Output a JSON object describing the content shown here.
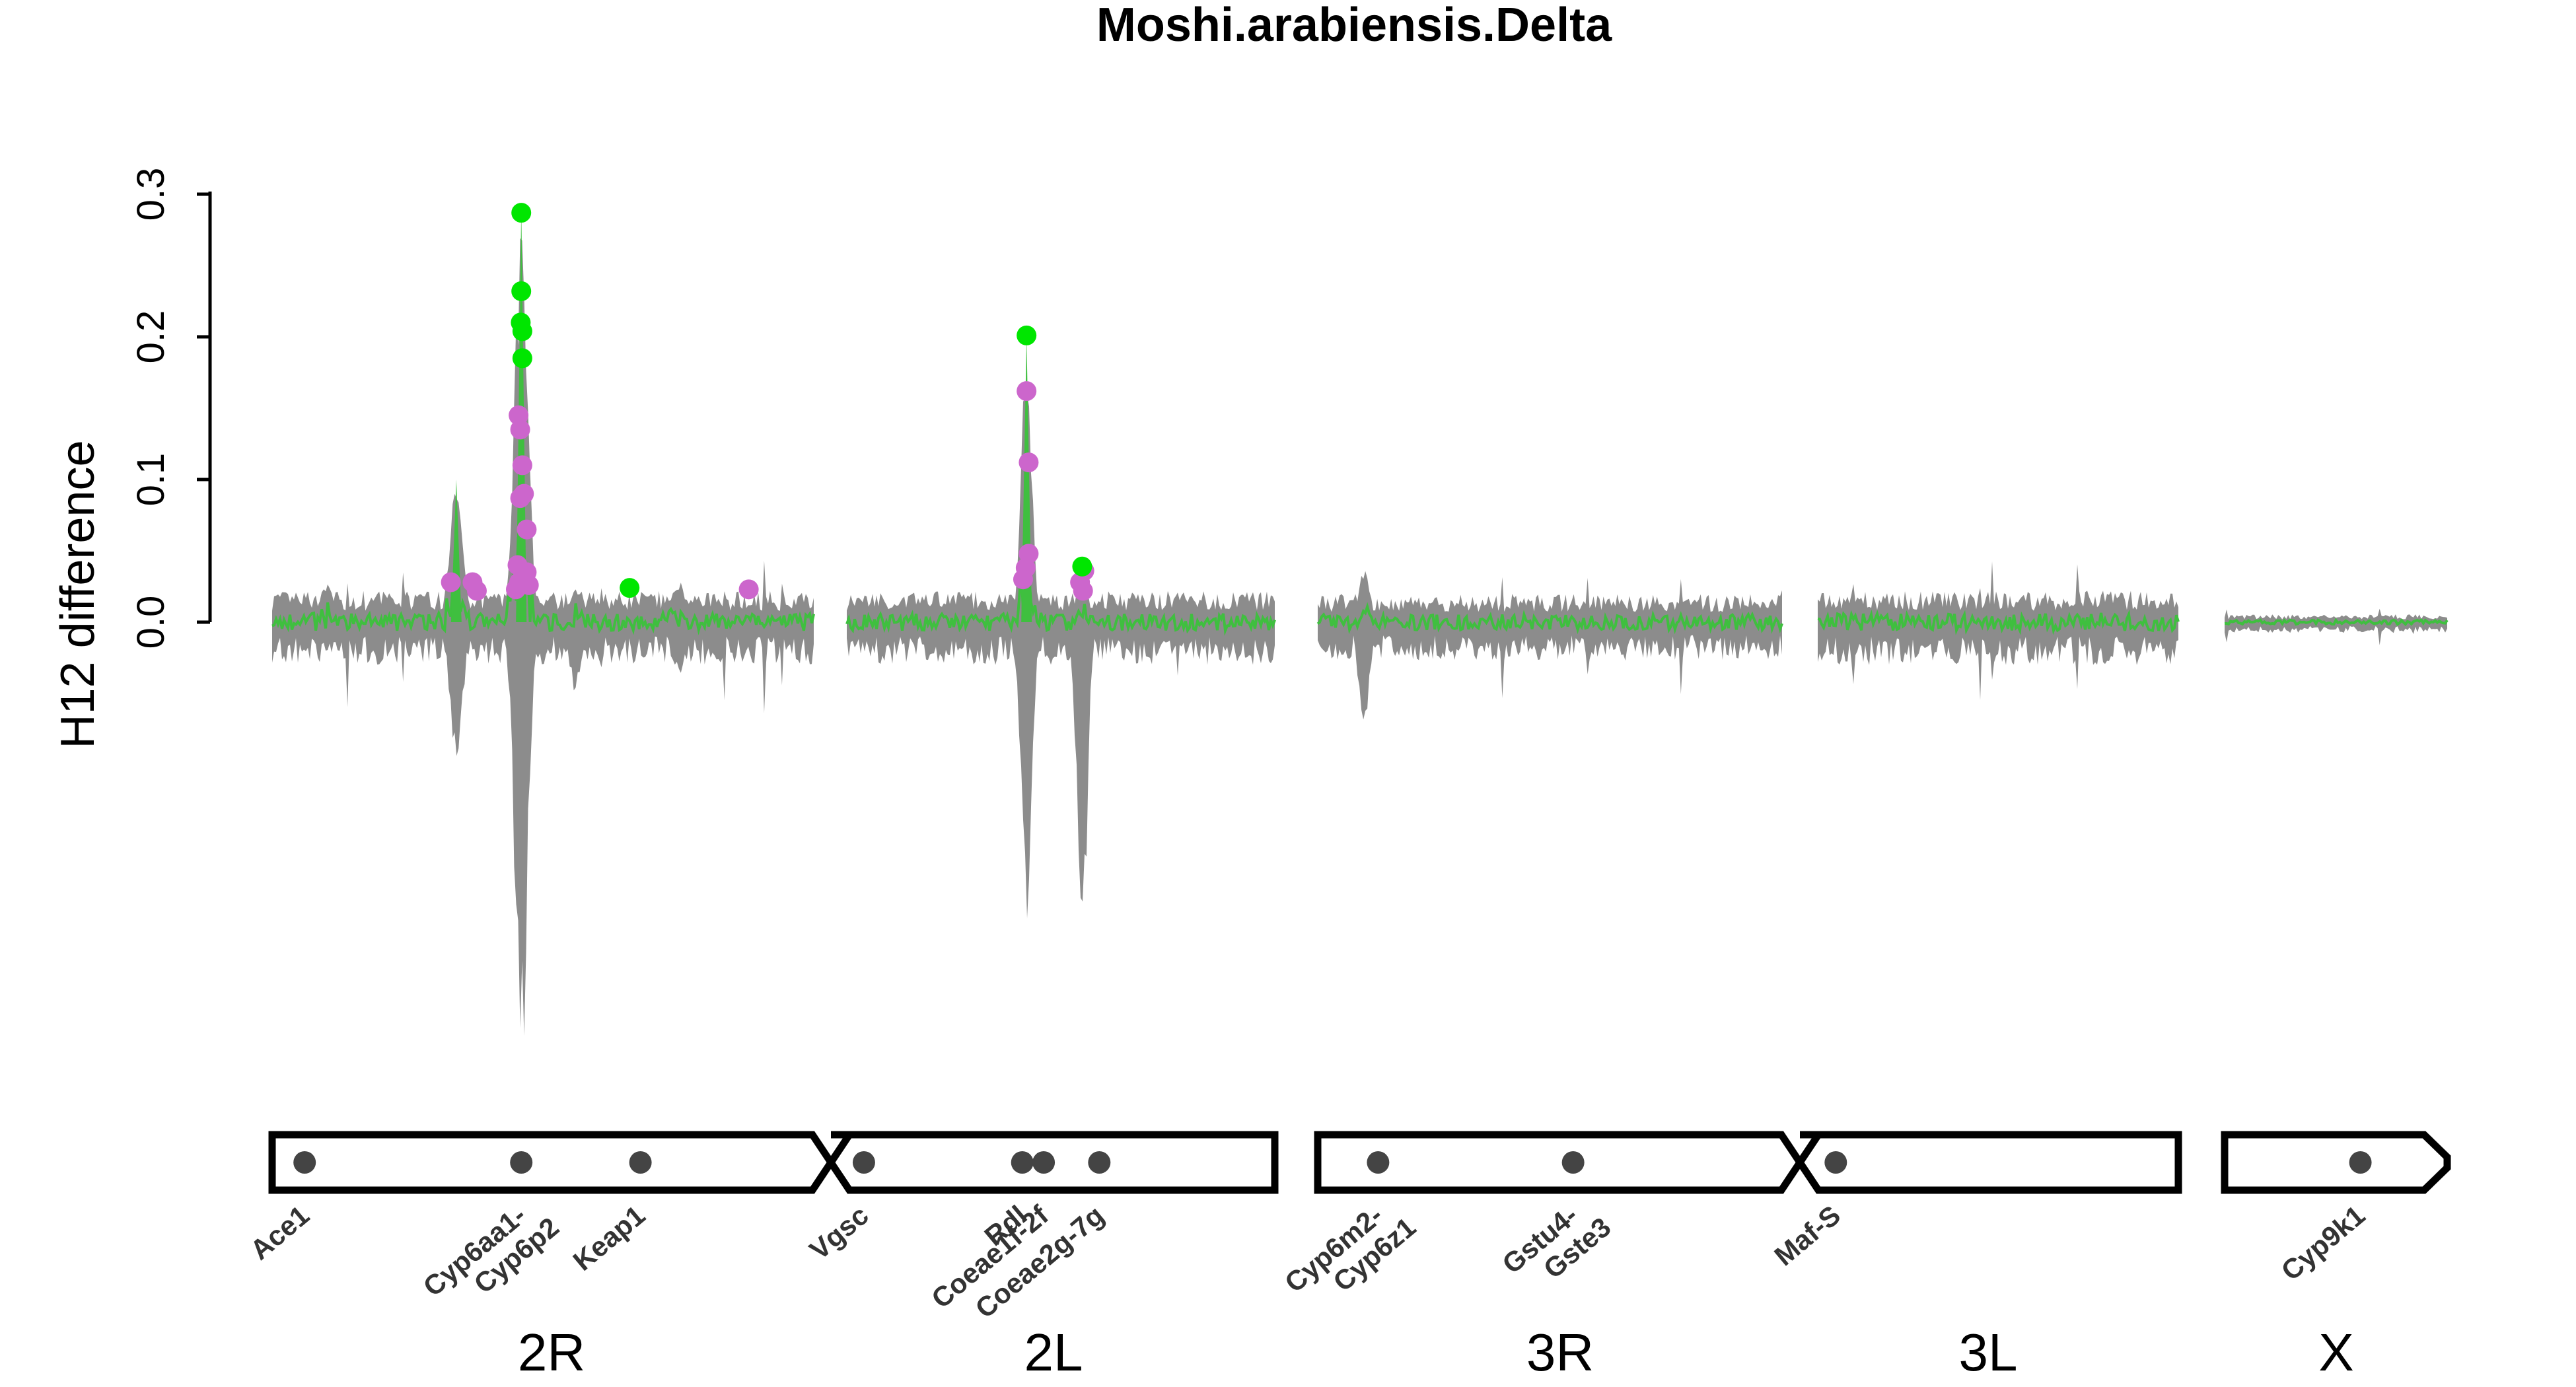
{
  "chart_data": {
    "type": "line",
    "title": "Moshi.arabiensis.Delta",
    "ylabel": "H12 difference",
    "xlabel": "",
    "ylim": [
      -0.32,
      0.35
    ],
    "yticks": [
      {
        "value": 0.0,
        "label": "0.0"
      },
      {
        "value": 0.1,
        "label": "0.1"
      },
      {
        "value": 0.2,
        "label": "0.2"
      },
      {
        "value": 0.3,
        "label": "0.3"
      }
    ],
    "colors": {
      "line": "#3fbf3f",
      "band": "#8c8c8c",
      "significant_high": "#00e600",
      "significant_mid": "#cc66cc",
      "gene_dot": "#444444",
      "outline": "#000000"
    },
    "chromosomes": [
      {
        "name": "2R",
        "start": 0,
        "end": 1
      },
      {
        "name": "2L",
        "start": 1,
        "end": 2
      },
      {
        "name": "3R",
        "start": 2,
        "end": 3
      },
      {
        "name": "3L",
        "start": 3,
        "end": 4
      },
      {
        "name": "X",
        "start": 4,
        "end": 5
      }
    ],
    "series": [
      {
        "name": "",
        "baseline": 0.0,
        "peaks": [
          {
            "x": 0.1,
            "y": 0.028,
            "lo": -0.02
          },
          {
            "x": 0.34,
            "y": 0.1,
            "lo": -0.1
          },
          {
            "x": 0.46,
            "y": 0.29,
            "lo": -0.32
          },
          {
            "x": 0.56,
            "y": 0.025,
            "lo": -0.05
          },
          {
            "x": 0.75,
            "y": 0.03,
            "lo": -0.04
          },
          {
            "x": 1.42,
            "y": 0.2,
            "lo": -0.24
          },
          {
            "x": 1.55,
            "y": 0.04,
            "lo": -0.25
          },
          {
            "x": 2.1,
            "y": 0.04,
            "lo": -0.08
          },
          {
            "x": 3.8,
            "y": 0.015,
            "lo": -0.03
          }
        ]
      }
    ],
    "points_green": [
      {
        "x": 0.46,
        "y": 0.287
      },
      {
        "x": 0.46,
        "y": 0.232
      },
      {
        "x": 0.459,
        "y": 0.21
      },
      {
        "x": 0.462,
        "y": 0.204
      },
      {
        "x": 0.462,
        "y": 0.185
      },
      {
        "x": 0.66,
        "y": 0.024
      },
      {
        "x": 1.42,
        "y": 0.201
      },
      {
        "x": 1.55,
        "y": 0.039
      }
    ],
    "points_magenta": [
      {
        "x": 0.33,
        "y": 0.028
      },
      {
        "x": 0.37,
        "y": 0.028
      },
      {
        "x": 0.378,
        "y": 0.022
      },
      {
        "x": 0.455,
        "y": 0.145
      },
      {
        "x": 0.458,
        "y": 0.135
      },
      {
        "x": 0.462,
        "y": 0.11
      },
      {
        "x": 0.465,
        "y": 0.09
      },
      {
        "x": 0.458,
        "y": 0.087
      },
      {
        "x": 0.47,
        "y": 0.065
      },
      {
        "x": 0.453,
        "y": 0.04
      },
      {
        "x": 0.47,
        "y": 0.035
      },
      {
        "x": 0.456,
        "y": 0.028
      },
      {
        "x": 0.474,
        "y": 0.026
      },
      {
        "x": 0.45,
        "y": 0.023
      },
      {
        "x": 0.88,
        "y": 0.023
      },
      {
        "x": 1.42,
        "y": 0.162
      },
      {
        "x": 1.425,
        "y": 0.112
      },
      {
        "x": 1.425,
        "y": 0.048
      },
      {
        "x": 1.418,
        "y": 0.038
      },
      {
        "x": 1.412,
        "y": 0.03
      },
      {
        "x": 1.555,
        "y": 0.036
      },
      {
        "x": 1.545,
        "y": 0.028
      },
      {
        "x": 1.552,
        "y": 0.022
      }
    ],
    "genes": [
      {
        "label": "Ace1",
        "x": 0.06
      },
      {
        "label": "Cyp6aa1-",
        "label2": "Cyp6p2",
        "x": 0.46
      },
      {
        "label": "Keap1",
        "x": 0.68
      },
      {
        "label": "Vgsc",
        "x": 1.04
      },
      {
        "label": "Rdl",
        "x": 1.41
      },
      {
        "label": "Coeae1f-2f",
        "x": 1.46
      },
      {
        "label": "Coeae2g-7g",
        "x": 1.59
      },
      {
        "label": "Cyp6m2-",
        "label2": "Cyp6z1",
        "x": 2.13
      },
      {
        "label": "Gstu4-",
        "label2": "Gste3",
        "x": 2.55
      },
      {
        "label": "Maf-S",
        "x": 3.05
      },
      {
        "label": "Cyp9k1",
        "x": 4.61
      }
    ]
  }
}
